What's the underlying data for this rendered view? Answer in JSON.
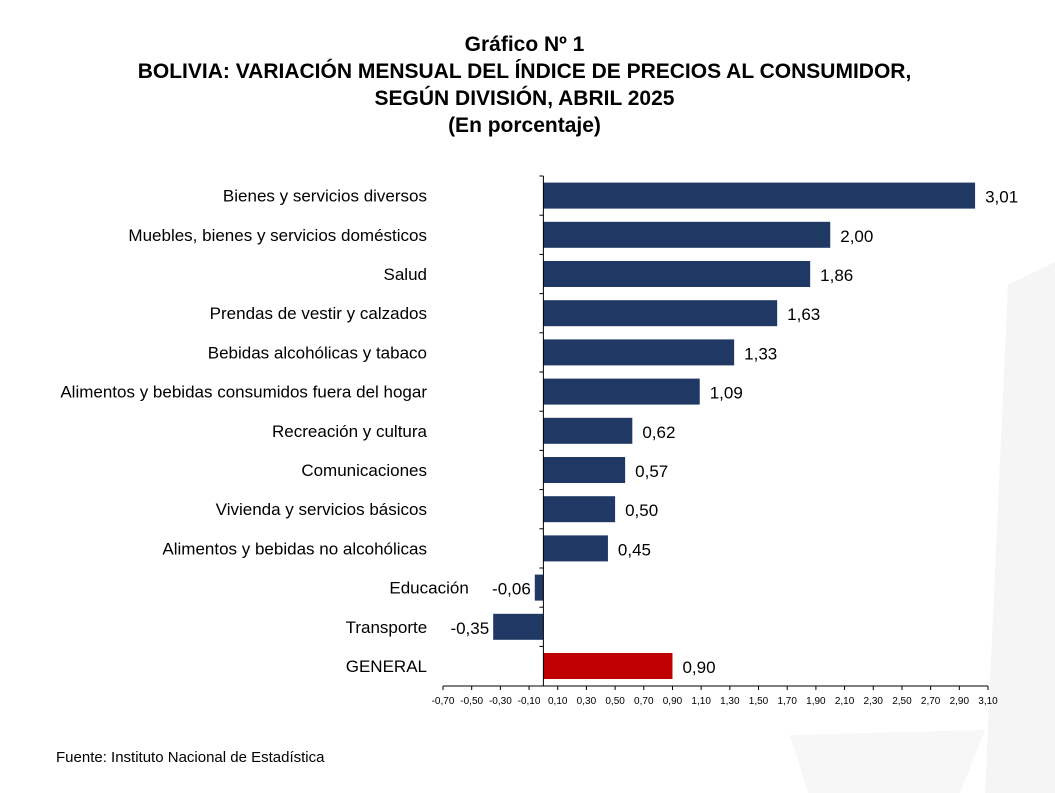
{
  "page": {
    "title": "Gráfico Nº 1",
    "subtitle_line1": "BOLIVIA: VARIACIÓN MENSUAL DEL ÍNDICE DE PRECIOS AL CONSUMIDOR,",
    "subtitle_line2": "SEGÚN DIVISIÓN, ABRIL 2025",
    "units": "(En porcentaje)",
    "source": "Fuente: Instituto Nacional de Estadística"
  },
  "colors": {
    "bar": "#1f3864",
    "highlight": "#c00000",
    "axis": "#000000",
    "decoration": "#f4f4f4"
  },
  "chart_data": {
    "type": "bar",
    "orientation": "horizontal",
    "categories": [
      "Bienes y servicios diversos",
      "Muebles, bienes y servicios domésticos",
      "Salud",
      "Prendas de vestir y calzados",
      "Bebidas alcohólicas y tabaco",
      "Alimentos y bebidas consumidos fuera del hogar",
      "Recreación y cultura",
      "Comunicaciones",
      "Vivienda y servicios básicos",
      "Alimentos y bebidas no alcohólicas",
      "Educación",
      "Transporte",
      "GENERAL"
    ],
    "values": [
      3.01,
      2.0,
      1.86,
      1.63,
      1.33,
      1.09,
      0.62,
      0.57,
      0.5,
      0.45,
      -0.06,
      -0.35,
      0.9
    ],
    "value_labels": [
      "3,01",
      "2,00",
      "1,86",
      "1,63",
      "1,33",
      "1,09",
      "0,62",
      "0,57",
      "0,50",
      "0,45",
      "-0,06",
      "-0,35",
      "0,90"
    ],
    "highlight": [
      "GENERAL"
    ],
    "xlim": [
      -0.7,
      3.1
    ],
    "xticks": [
      "-0,70",
      "-0,50",
      "-0,30",
      "-0,10",
      "0,10",
      "0,30",
      "0,50",
      "0,70",
      "0,90",
      "1,10",
      "1,30",
      "1,50",
      "1,70",
      "1,90",
      "2,10",
      "2,30",
      "2,50",
      "2,70",
      "2,90",
      "3,10"
    ],
    "xlabel": "",
    "ylabel": "",
    "grid": false,
    "legend": "none"
  }
}
